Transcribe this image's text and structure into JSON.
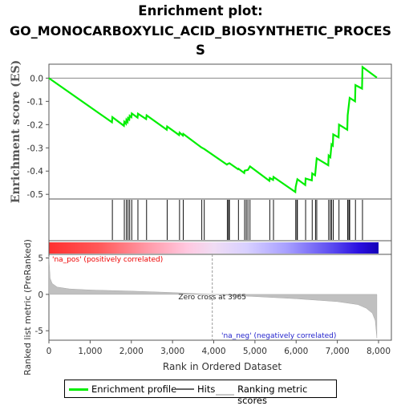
{
  "title_line1": "Enrichment plot:",
  "title_line2": "GO_MONOCARBOXYLIC_ACID_BIOSYNTHETIC_PROCES",
  "title_line3": "S",
  "es_ylabel": "Enrichment score (ES)",
  "metric_ylabel": "Ranked list metric (PreRanked)",
  "xlabel": "Rank in Ordered Dataset",
  "pos_label": "'na_pos' (positively correlated)",
  "neg_label": "'na_neg' (negatively correlated)",
  "zero_cross_label": "Zero cross at 3965",
  "legend": {
    "profile": "Enrichment profile",
    "hits": "Hits",
    "ranking": "Ranking metric scores"
  },
  "colors": {
    "profile": "#00ee00",
    "hits": "#000000",
    "ranking": "#c0c0c0",
    "pos": "#ff0000",
    "neg": "#0000cc"
  },
  "chart_data": {
    "type": "line",
    "x_range": [
      0,
      8000
    ],
    "x_ticks": [
      0,
      1000,
      2000,
      3000,
      4000,
      5000,
      6000,
      7000,
      8000
    ],
    "es_ylim": [
      -0.52,
      0.06
    ],
    "es_ticks": [
      0.0,
      -0.1,
      -0.2,
      -0.3,
      -0.4,
      -0.5
    ],
    "metric_ylim": [
      -6.3,
      5.5
    ],
    "metric_ticks": [
      5,
      0,
      -5
    ],
    "zero_cross": 3965,
    "n_genes": 7960,
    "hits": [
      1540,
      1830,
      1880,
      1920,
      1960,
      2010,
      2160,
      2370,
      2870,
      3170,
      3260,
      3710,
      3770,
      4330,
      4360,
      4380,
      4600,
      4750,
      4790,
      4830,
      4880,
      5360,
      5450,
      5990,
      6020,
      6030,
      6230,
      6390,
      6470,
      6500,
      6790,
      6830,
      6860,
      6900,
      7040,
      7250,
      7280,
      7300,
      7440,
      7610
    ],
    "es_profile": [
      [
        0,
        0.0
      ],
      [
        1530,
        -0.19
      ],
      [
        1540,
        -0.168
      ],
      [
        1820,
        -0.205
      ],
      [
        1830,
        -0.188
      ],
      [
        1870,
        -0.196
      ],
      [
        1880,
        -0.18
      ],
      [
        1910,
        -0.188
      ],
      [
        1920,
        -0.172
      ],
      [
        1950,
        -0.178
      ],
      [
        1960,
        -0.162
      ],
      [
        2000,
        -0.168
      ],
      [
        2010,
        -0.152
      ],
      [
        2150,
        -0.17
      ],
      [
        2160,
        -0.153
      ],
      [
        2360,
        -0.176
      ],
      [
        2370,
        -0.16
      ],
      [
        2860,
        -0.222
      ],
      [
        2870,
        -0.208
      ],
      [
        3160,
        -0.245
      ],
      [
        3170,
        -0.234
      ],
      [
        3250,
        -0.247
      ],
      [
        3260,
        -0.24
      ],
      [
        3700,
        -0.298
      ],
      [
        3770,
        -0.305
      ],
      [
        4320,
        -0.372
      ],
      [
        4330,
        -0.37
      ],
      [
        4380,
        -0.366
      ],
      [
        4590,
        -0.392
      ],
      [
        4600,
        -0.39
      ],
      [
        4740,
        -0.408
      ],
      [
        4750,
        -0.398
      ],
      [
        4830,
        -0.395
      ],
      [
        4880,
        -0.38
      ],
      [
        5350,
        -0.442
      ],
      [
        5360,
        -0.43
      ],
      [
        5440,
        -0.438
      ],
      [
        5450,
        -0.425
      ],
      [
        5980,
        -0.49
      ],
      [
        5990,
        -0.468
      ],
      [
        6030,
        -0.435
      ],
      [
        6220,
        -0.46
      ],
      [
        6230,
        -0.432
      ],
      [
        6380,
        -0.44
      ],
      [
        6390,
        -0.41
      ],
      [
        6460,
        -0.418
      ],
      [
        6500,
        -0.345
      ],
      [
        6780,
        -0.375
      ],
      [
        6790,
        -0.333
      ],
      [
        6830,
        -0.34
      ],
      [
        6860,
        -0.285
      ],
      [
        6890,
        -0.29
      ],
      [
        6900,
        -0.242
      ],
      [
        7030,
        -0.255
      ],
      [
        7040,
        -0.2
      ],
      [
        7240,
        -0.222
      ],
      [
        7250,
        -0.16
      ],
      [
        7300,
        -0.085
      ],
      [
        7430,
        -0.1
      ],
      [
        7440,
        -0.03
      ],
      [
        7600,
        -0.045
      ],
      [
        7610,
        0.048
      ],
      [
        7960,
        0.002
      ]
    ],
    "metric_profile": [
      [
        0,
        5.2
      ],
      [
        30,
        2.2
      ],
      [
        80,
        1.5
      ],
      [
        200,
        1.0
      ],
      [
        500,
        0.75
      ],
      [
        1000,
        0.6
      ],
      [
        2000,
        0.45
      ],
      [
        3000,
        0.25
      ],
      [
        3965,
        0.0
      ],
      [
        5000,
        -0.3
      ],
      [
        6000,
        -0.6
      ],
      [
        7000,
        -1.0
      ],
      [
        7500,
        -1.4
      ],
      [
        7700,
        -1.9
      ],
      [
        7850,
        -2.6
      ],
      [
        7920,
        -3.6
      ],
      [
        7960,
        -6.0
      ]
    ]
  }
}
